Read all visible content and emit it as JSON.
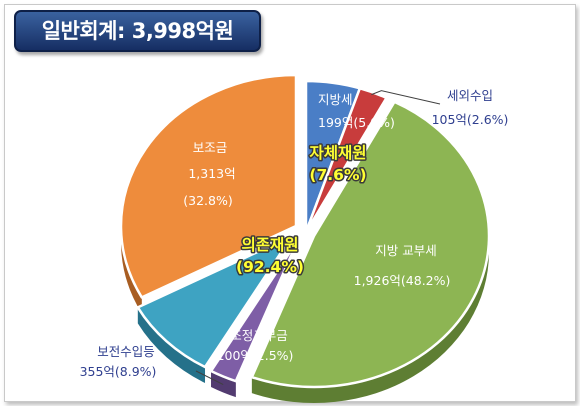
{
  "title": "일반회계: 3,998억원",
  "chart_data": {
    "type": "pie",
    "slices": [
      {
        "name": "지방세",
        "amount": "199억",
        "value": 199,
        "percent": 5.0,
        "percent_label": "(5.0%)",
        "color": "#4a7ec6",
        "side": "#2d5a97"
      },
      {
        "name": "세외수입",
        "amount": "105억",
        "value": 105,
        "percent": 2.6,
        "percent_label": "(2.6%)",
        "color": "#c83c3c",
        "side": "#8a2424"
      },
      {
        "name": "지방 교부세",
        "amount": "1,926억",
        "value": 1926,
        "percent": 48.2,
        "percent_label": "(48.2%)",
        "color": "#8db553",
        "side": "#5e7e33"
      },
      {
        "name": "조정교부금",
        "amount": "100억",
        "value": 100,
        "percent": 2.5,
        "percent_label": "(2.5%)",
        "color": "#7e5ea6",
        "side": "#523b70"
      },
      {
        "name": "보전수입등",
        "amount": "355억",
        "value": 355,
        "percent": 8.9,
        "percent_label": "(8.9%)",
        "color": "#3ea3c2",
        "side": "#25718a"
      },
      {
        "name": "보조금",
        "amount": "1,313억",
        "value": 1313,
        "percent": 32.8,
        "percent_label": "(32.8%)",
        "color": "#ee8c3c",
        "side": "#a85d22"
      }
    ],
    "groups": [
      {
        "name": "자체재원",
        "percent_label": "(7.6%)"
      },
      {
        "name": "의존재원",
        "percent_label": "(92.4%)"
      }
    ]
  }
}
